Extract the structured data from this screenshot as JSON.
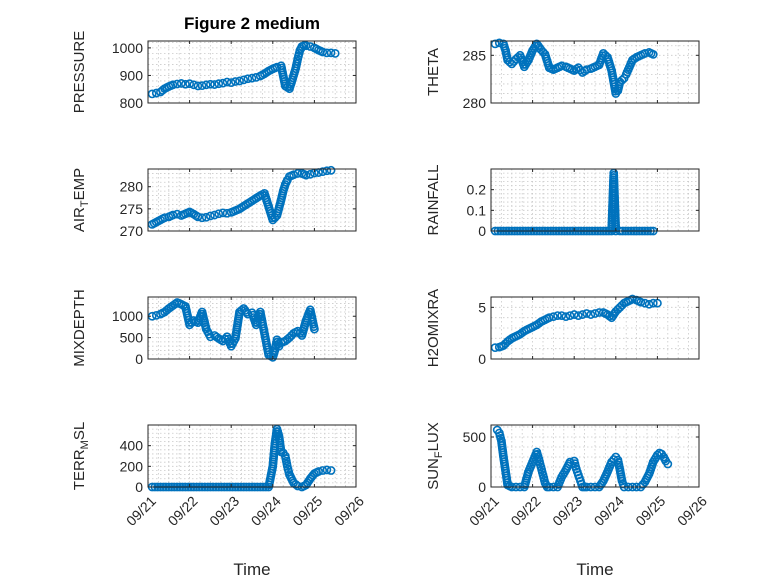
{
  "figure_title": "Figure 2 medium",
  "x_axis_label": "Time",
  "marker_color": "#0072BD",
  "chart_data": [
    {
      "type": "scatter",
      "ylabel": "PRESSURE",
      "ylabel_main": "PRESSURE",
      "ylabel_sub": "",
      "ylabel_rest": "",
      "xlim": [
        0,
        5
      ],
      "ylim": [
        800,
        1025
      ],
      "yticks": [
        800,
        900,
        1000
      ],
      "grid": true,
      "title": "Figure 2 medium",
      "x": [
        0.1,
        0.2,
        0.3,
        0.4,
        0.5,
        0.6,
        0.7,
        0.8,
        0.9,
        1.0,
        1.1,
        1.2,
        1.3,
        1.4,
        1.5,
        1.6,
        1.7,
        1.8,
        1.9,
        2.0,
        2.1,
        2.2,
        2.3,
        2.4,
        2.5,
        2.6,
        2.7,
        2.8,
        2.9,
        3.0,
        3.1,
        3.2,
        3.3,
        3.4,
        3.45,
        3.5,
        3.55,
        3.6,
        3.65,
        3.7,
        3.75,
        3.8,
        3.9,
        4.0,
        4.1,
        4.2,
        4.3,
        4.4,
        4.5
      ],
      "y": [
        833,
        836,
        840,
        852,
        860,
        866,
        869,
        871,
        868,
        870,
        866,
        862,
        863,
        866,
        868,
        867,
        870,
        872,
        876,
        874,
        878,
        880,
        884,
        888,
        890,
        893,
        898,
        906,
        916,
        924,
        930,
        935,
        862,
        852,
        875,
        900,
        925,
        960,
        990,
        1005,
        1008,
        1008,
        1005,
        1000,
        992,
        985,
        982,
        982,
        980
      ]
    },
    {
      "type": "scatter",
      "ylabel": "THETA",
      "ylabel_main": "THETA",
      "ylabel_sub": "",
      "ylabel_rest": "",
      "xlim": [
        0,
        5
      ],
      "ylim": [
        280,
        286.5
      ],
      "yticks": [
        280,
        285
      ],
      "grid": true,
      "x": [
        0.1,
        0.2,
        0.3,
        0.35,
        0.4,
        0.5,
        0.6,
        0.7,
        0.8,
        0.9,
        1.0,
        1.1,
        1.2,
        1.3,
        1.4,
        1.5,
        1.6,
        1.7,
        1.8,
        1.9,
        2.0,
        2.1,
        2.2,
        2.3,
        2.4,
        2.5,
        2.6,
        2.7,
        2.8,
        2.9,
        3.0,
        3.05,
        3.1,
        3.2,
        3.25,
        3.3,
        3.35,
        3.4,
        3.5,
        3.6,
        3.7,
        3.8,
        3.9
      ],
      "y": [
        286.2,
        286.3,
        286.2,
        285.5,
        284.5,
        284.1,
        284.6,
        285.0,
        283.8,
        284.5,
        285.5,
        286.2,
        285.6,
        285.1,
        283.7,
        283.5,
        283.7,
        283.9,
        283.8,
        283.6,
        283.4,
        283.7,
        283.2,
        283.5,
        283.6,
        283.8,
        284.0,
        285.2,
        284.8,
        283.4,
        281.0,
        281.3,
        282.2,
        282.6,
        283.0,
        283.5,
        284.0,
        284.5,
        284.8,
        285.0,
        285.2,
        285.3,
        285.1
      ]
    },
    {
      "type": "scatter",
      "ylabel": "AIR_TEMP",
      "ylabel_main": "AIR",
      "ylabel_sub": "T",
      "ylabel_rest": "EMP",
      "xlim": [
        0,
        5
      ],
      "ylim": [
        270,
        284
      ],
      "yticks": [
        270,
        275,
        280
      ],
      "grid": true,
      "x": [
        0.1,
        0.2,
        0.3,
        0.4,
        0.5,
        0.6,
        0.7,
        0.8,
        0.9,
        1.0,
        1.1,
        1.2,
        1.3,
        1.4,
        1.5,
        1.6,
        1.7,
        1.8,
        1.9,
        2.0,
        2.1,
        2.2,
        2.3,
        2.4,
        2.5,
        2.6,
        2.7,
        2.8,
        2.9,
        3.0,
        3.1,
        3.2,
        3.25,
        3.3,
        3.35,
        3.4,
        3.5,
        3.6,
        3.7,
        3.8,
        3.9,
        4.0,
        4.1,
        4.2,
        4.3,
        4.4
      ],
      "y": [
        271.5,
        272.0,
        272.5,
        273.0,
        273.2,
        273.6,
        273.8,
        273.5,
        273.9,
        274.3,
        273.8,
        273.2,
        273.0,
        273.1,
        273.4,
        273.6,
        273.9,
        274.1,
        274.0,
        274.2,
        274.6,
        275.0,
        275.6,
        276.2,
        276.8,
        277.4,
        278.0,
        278.5,
        275.5,
        272.5,
        273.5,
        277.0,
        279.0,
        280.5,
        281.5,
        282.3,
        282.7,
        283.0,
        283.0,
        282.6,
        282.8,
        283.1,
        283.2,
        283.4,
        283.6,
        283.7
      ]
    },
    {
      "type": "scatter",
      "ylabel": "RAINFALL",
      "ylabel_main": "RAINFALL",
      "ylabel_sub": "",
      "ylabel_rest": "",
      "xlim": [
        0,
        5
      ],
      "ylim": [
        0,
        0.3
      ],
      "yticks": [
        0,
        0.1,
        0.2
      ],
      "grid": true,
      "x": [
        0.1,
        0.3,
        0.5,
        0.7,
        0.9,
        1.1,
        1.3,
        1.5,
        1.7,
        1.9,
        2.1,
        2.3,
        2.5,
        2.7,
        2.9,
        2.95,
        3.0,
        3.1,
        3.3,
        3.5,
        3.7,
        3.9
      ],
      "y": [
        0,
        0,
        0,
        0,
        0,
        0,
        0,
        0,
        0,
        0,
        0,
        0,
        0,
        0,
        0,
        0.28,
        0,
        0,
        0,
        0,
        0,
        0
      ]
    },
    {
      "type": "scatter",
      "ylabel": "MIXDEPTH",
      "ylabel_main": "MIXDEPTH",
      "ylabel_sub": "",
      "ylabel_rest": "",
      "xlim": [
        0,
        5
      ],
      "ylim": [
        0,
        1450
      ],
      "yticks": [
        0,
        500,
        1000
      ],
      "grid": true,
      "x": [
        0.1,
        0.2,
        0.3,
        0.4,
        0.5,
        0.6,
        0.7,
        0.8,
        0.9,
        1.0,
        1.1,
        1.2,
        1.3,
        1.4,
        1.5,
        1.6,
        1.7,
        1.8,
        1.9,
        2.0,
        2.1,
        2.2,
        2.3,
        2.4,
        2.5,
        2.6,
        2.7,
        2.8,
        2.9,
        3.0,
        3.05,
        3.1,
        3.15,
        3.2,
        3.3,
        3.4,
        3.5,
        3.6,
        3.7,
        3.8,
        3.9,
        4.0
      ],
      "y": [
        1000,
        1020,
        1050,
        1100,
        1180,
        1250,
        1320,
        1280,
        1230,
        800,
        900,
        850,
        1100,
        700,
        520,
        550,
        480,
        420,
        520,
        300,
        480,
        1100,
        1180,
        1050,
        1080,
        800,
        1100,
        600,
        100,
        40,
        200,
        450,
        300,
        380,
        420,
        500,
        600,
        650,
        550,
        900,
        1150,
        700
      ]
    },
    {
      "type": "scatter",
      "ylabel": "H2OMIXRA",
      "ylabel_main": "H2OMIXRA",
      "ylabel_sub": "",
      "ylabel_rest": "",
      "xlim": [
        0,
        5
      ],
      "ylim": [
        0,
        6
      ],
      "yticks": [
        0,
        5
      ],
      "grid": true,
      "x": [
        0.1,
        0.2,
        0.3,
        0.4,
        0.5,
        0.6,
        0.7,
        0.8,
        0.9,
        1.0,
        1.1,
        1.2,
        1.3,
        1.4,
        1.5,
        1.6,
        1.7,
        1.8,
        1.9,
        2.0,
        2.1,
        2.2,
        2.3,
        2.4,
        2.5,
        2.6,
        2.7,
        2.8,
        2.9,
        3.0,
        3.1,
        3.2,
        3.3,
        3.4,
        3.5,
        3.6,
        3.7,
        3.8,
        3.9,
        4.0
      ],
      "y": [
        1.1,
        1.15,
        1.3,
        1.7,
        2.0,
        2.2,
        2.4,
        2.7,
        2.9,
        3.1,
        3.3,
        3.6,
        3.8,
        4.0,
        4.1,
        4.2,
        4.2,
        4.1,
        4.2,
        4.3,
        4.2,
        4.3,
        4.4,
        4.3,
        4.4,
        4.5,
        4.5,
        4.3,
        4.0,
        4.6,
        5.0,
        5.4,
        5.6,
        5.8,
        5.7,
        5.5,
        5.4,
        5.3,
        5.4,
        5.4
      ]
    },
    {
      "type": "scatter",
      "ylabel": "TERR_MSL",
      "ylabel_main": "TERR",
      "ylabel_sub": "M",
      "ylabel_rest": "SL",
      "xlim": [
        0,
        5
      ],
      "ylim": [
        0,
        600
      ],
      "yticks": [
        0,
        200,
        400
      ],
      "grid": true,
      "xtick_labels": [
        "09/21",
        "09/22",
        "09/23",
        "09/24",
        "09/25",
        "09/26"
      ],
      "x": [
        0.1,
        0.3,
        0.5,
        0.7,
        0.9,
        1.1,
        1.3,
        1.5,
        1.7,
        1.9,
        2.1,
        2.3,
        2.5,
        2.7,
        2.9,
        3.0,
        3.05,
        3.1,
        3.15,
        3.2,
        3.25,
        3.3,
        3.35,
        3.4,
        3.5,
        3.6,
        3.7,
        3.8,
        3.9,
        4.0,
        4.1,
        4.2,
        4.3,
        4.4
      ],
      "y": [
        0,
        0,
        0,
        0,
        0,
        0,
        0,
        0,
        0,
        0,
        0,
        0,
        0,
        0,
        0,
        200,
        420,
        560,
        490,
        340,
        330,
        300,
        200,
        120,
        40,
        10,
        0,
        20,
        80,
        130,
        150,
        160,
        165,
        160
      ]
    },
    {
      "type": "scatter",
      "ylabel": "SUN_FLUX",
      "ylabel_main": "SUN",
      "ylabel_sub": "F",
      "ylabel_rest": "LUX",
      "xlim": [
        0,
        5
      ],
      "ylim": [
        0,
        620
      ],
      "yticks": [
        0,
        500
      ],
      "grid": true,
      "xtick_labels": [
        "09/21",
        "09/22",
        "09/23",
        "09/24",
        "09/25",
        "09/26"
      ],
      "x": [
        0.15,
        0.2,
        0.25,
        0.3,
        0.35,
        0.4,
        0.45,
        0.5,
        0.6,
        0.7,
        0.8,
        0.9,
        1.0,
        1.1,
        1.15,
        1.2,
        1.25,
        1.3,
        1.35,
        1.4,
        1.5,
        1.6,
        1.7,
        1.8,
        1.9,
        2.0,
        2.05,
        2.1,
        2.15,
        2.2,
        2.25,
        2.3,
        2.4,
        2.5,
        2.6,
        2.7,
        2.8,
        2.9,
        3.0,
        3.05,
        3.1,
        3.15,
        3.2,
        3.3,
        3.4,
        3.5,
        3.6,
        3.7,
        3.8,
        3.9,
        4.0,
        4.05,
        4.1,
        4.15,
        4.2,
        4.25
      ],
      "y": [
        570,
        540,
        460,
        300,
        160,
        20,
        10,
        0,
        0,
        0,
        0,
        150,
        250,
        350,
        280,
        200,
        120,
        40,
        0,
        0,
        0,
        0,
        100,
        170,
        250,
        260,
        180,
        120,
        60,
        0,
        0,
        0,
        0,
        0,
        0,
        60,
        150,
        250,
        300,
        270,
        170,
        60,
        0,
        0,
        0,
        0,
        0,
        50,
        130,
        250,
        320,
        340,
        330,
        300,
        260,
        230
      ]
    }
  ]
}
